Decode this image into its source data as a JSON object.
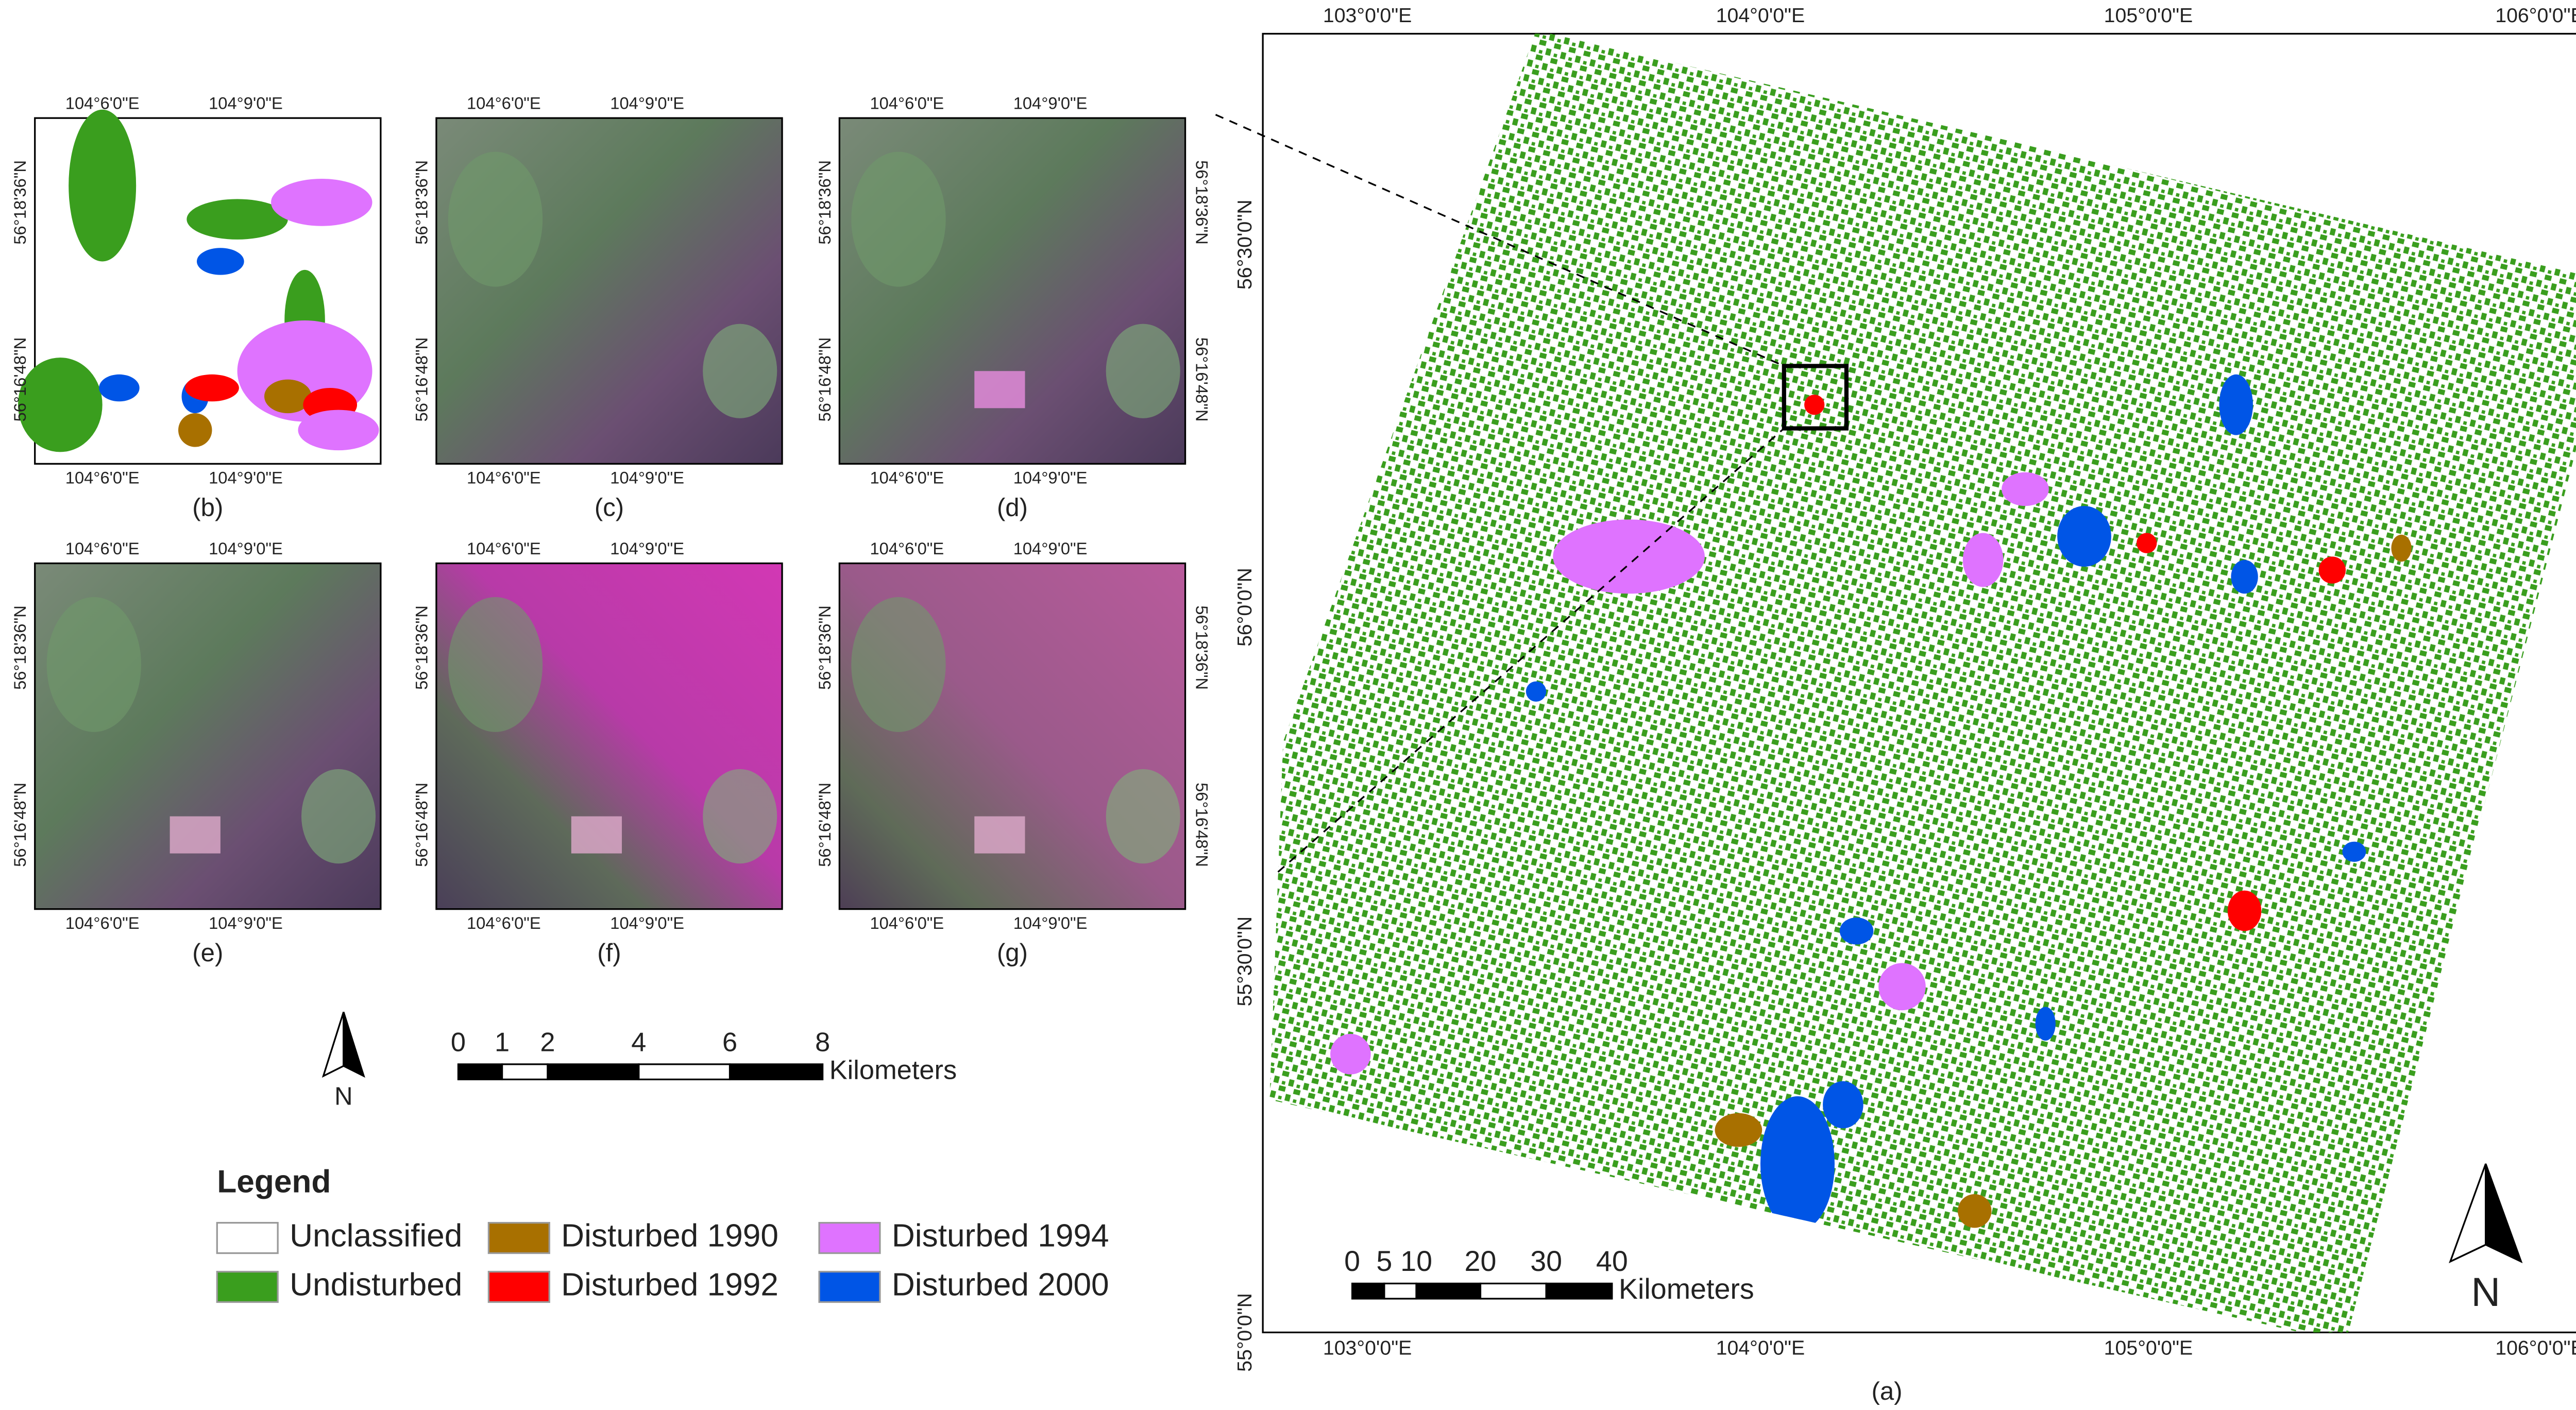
{
  "main_map": {
    "label": "(a)",
    "lon_ticks": [
      "103°0'0\"E",
      "104°0'0\"E",
      "105°0'0\"E",
      "106°0'0\"E"
    ],
    "lat_ticks": [
      "56°30'0\"N",
      "56°0'0\"N",
      "55°30'0\"N",
      "55°0'0\"N"
    ],
    "scale_bar": {
      "labels": [
        "0",
        "5",
        "10",
        "20",
        "30",
        "40"
      ],
      "unit": "Kilometers"
    },
    "north": "N"
  },
  "insets": {
    "panels": [
      {
        "label": "(b)"
      },
      {
        "label": "(c)"
      },
      {
        "label": "(d)"
      },
      {
        "label": "(e)"
      },
      {
        "label": "(f)"
      },
      {
        "label": "(g)"
      }
    ],
    "lon_ticks": [
      "104°6'0\"E",
      "104°9'0\"E"
    ],
    "lat_ticks": [
      "56°18'36\"N",
      "56°16'48\"N"
    ],
    "scale_bar": {
      "labels": [
        "0",
        "1",
        "2",
        "4",
        "6",
        "8"
      ],
      "unit": "Kilometers"
    },
    "north": "N"
  },
  "legend": {
    "title": "Legend",
    "items": [
      {
        "label": "Unclassified",
        "color": "#ffffff"
      },
      {
        "label": "Undisturbed",
        "color": "#3a9e1e"
      },
      {
        "label": "Disturbed 1990",
        "color": "#a87000"
      },
      {
        "label": "Disturbed 1992",
        "color": "#ff0000"
      },
      {
        "label": "Disturbed 1994",
        "color": "#df73ff"
      },
      {
        "label": "Disturbed 2000",
        "color": "#0055e6"
      }
    ]
  }
}
